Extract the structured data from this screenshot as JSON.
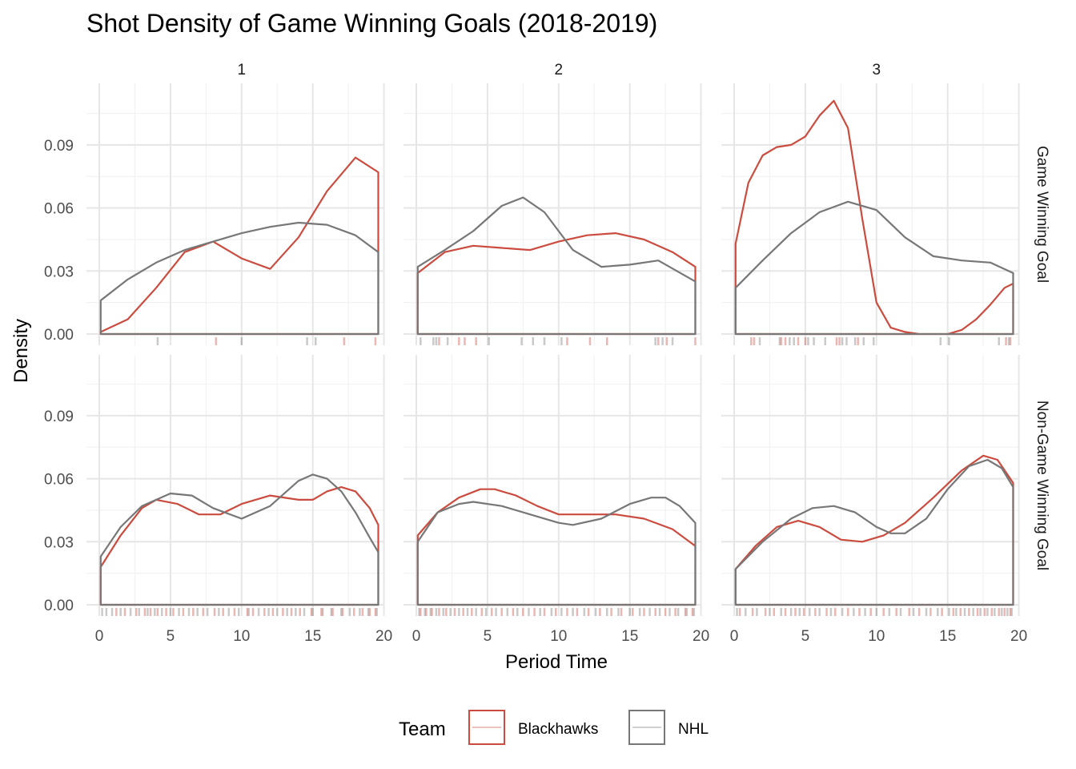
{
  "chart_data": {
    "type": "line",
    "title": "Shot Density of Game Winning Goals (2018-2019)",
    "xlabel": "Period Time",
    "ylabel": "Density",
    "xlim": [
      0,
      20
    ],
    "ylim": [
      0,
      0.12
    ],
    "x_ticks": [
      0,
      5,
      10,
      15,
      20
    ],
    "y_ticks": [
      0.0,
      0.03,
      0.06,
      0.09
    ],
    "y_tick_labels": [
      "0.00",
      "0.03",
      "0.06",
      "0.09"
    ],
    "grid": true,
    "col_facets": [
      "1",
      "2",
      "3"
    ],
    "row_facets": [
      "Game Winning Goal",
      "Non-Game Winning Goal"
    ],
    "legend": {
      "title": "Team",
      "position": "bottom",
      "entries": [
        "Blackhawks",
        "NHL"
      ]
    },
    "colors": {
      "Blackhawks": "#cb4c3f",
      "NHL": "#777777"
    },
    "panels": [
      {
        "row": "Game Winning Goal",
        "col": "1",
        "series": [
          {
            "name": "Blackhawks",
            "x": [
              0.1,
              2,
              4,
              6,
              8,
              10,
              12,
              14,
              16,
              18,
              19.6
            ],
            "y": [
              0.001,
              0.007,
              0.022,
              0.039,
              0.044,
              0.036,
              0.031,
              0.046,
              0.068,
              0.084,
              0.077
            ]
          },
          {
            "name": "NHL",
            "x": [
              0.1,
              2,
              4,
              6,
              8,
              10,
              12,
              14,
              16,
              18,
              19.6
            ],
            "y": [
              0.016,
              0.026,
              0.034,
              0.04,
              0.044,
              0.048,
              0.051,
              0.053,
              0.052,
              0.047,
              0.039
            ]
          }
        ],
        "rug": {
          "Blackhawks": [
            8.2,
            17.2,
            19.4
          ],
          "NHL": [
            4.1,
            10.0,
            14.6,
            15.2
          ]
        }
      },
      {
        "row": "Game Winning Goal",
        "col": "2",
        "series": [
          {
            "name": "Blackhawks",
            "x": [
              0.1,
              2,
              4,
              6,
              8,
              10,
              12,
              14,
              16,
              18,
              19.6
            ],
            "y": [
              0.029,
              0.039,
              0.042,
              0.041,
              0.04,
              0.044,
              0.047,
              0.048,
              0.045,
              0.039,
              0.032
            ]
          },
          {
            "name": "NHL",
            "x": [
              0.1,
              2,
              4,
              6,
              7.5,
              9,
              11,
              13,
              15,
              17,
              19.6
            ],
            "y": [
              0.032,
              0.04,
              0.049,
              0.061,
              0.065,
              0.058,
              0.04,
              0.032,
              0.033,
              0.035,
              0.025
            ]
          }
        ],
        "rug": {
          "Blackhawks": [
            1.6,
            3.0,
            3.4,
            4.2,
            10.6,
            12.2,
            13.4,
            17.0,
            17.6,
            19.6
          ],
          "NHL": [
            0.3,
            1.2,
            1.4,
            2.2,
            5.1,
            7.4,
            8.2,
            9.0,
            10.2,
            16.8,
            17.3,
            18.0
          ]
        }
      },
      {
        "row": "Game Winning Goal",
        "col": "3",
        "series": [
          {
            "name": "Blackhawks",
            "x": [
              0.1,
              1,
              2,
              3,
              4,
              5,
              6,
              7,
              8,
              9,
              10,
              11,
              12,
              13,
              14,
              15,
              16,
              17,
              18,
              19,
              19.6
            ],
            "y": [
              0.043,
              0.072,
              0.085,
              0.089,
              0.09,
              0.094,
              0.104,
              0.111,
              0.098,
              0.055,
              0.015,
              0.003,
              0.001,
              0.0,
              0.0,
              0.0,
              0.002,
              0.007,
              0.014,
              0.022,
              0.024
            ]
          },
          {
            "name": "NHL",
            "x": [
              0.1,
              2,
              4,
              6,
              8,
              10,
              12,
              14,
              16,
              18,
              19.6
            ],
            "y": [
              0.022,
              0.035,
              0.048,
              0.058,
              0.063,
              0.059,
              0.046,
              0.037,
              0.035,
              0.034,
              0.029
            ]
          }
        ],
        "rug": {
          "Blackhawks": [
            1.2,
            1.4,
            3.3,
            3.6,
            4.5,
            5.0,
            7.2,
            7.4,
            8.7,
            19.1,
            19.4
          ],
          "NHL": [
            1.8,
            3.2,
            3.9,
            4.2,
            5.2,
            5.6,
            6.4,
            7.6,
            7.9,
            8.5,
            9.1,
            9.8,
            14.5,
            15.1,
            18.6,
            19.3
          ]
        }
      },
      {
        "row": "Non-Game Winning Goal",
        "col": "1",
        "series": [
          {
            "name": "Blackhawks",
            "x": [
              0.1,
              1.5,
              3,
              4,
              5.5,
              7,
              8.5,
              10,
              12,
              14,
              15,
              16,
              17,
              18,
              19,
              19.6
            ],
            "y": [
              0.018,
              0.033,
              0.046,
              0.05,
              0.048,
              0.043,
              0.043,
              0.048,
              0.052,
              0.05,
              0.05,
              0.054,
              0.056,
              0.054,
              0.046,
              0.038
            ]
          },
          {
            "name": "NHL",
            "x": [
              0.1,
              1.5,
              3,
              5,
              6.5,
              8,
              10,
              12,
              14,
              15,
              16,
              17,
              18,
              19,
              19.6
            ],
            "y": [
              0.023,
              0.037,
              0.047,
              0.053,
              0.052,
              0.046,
              0.041,
              0.047,
              0.059,
              0.062,
              0.06,
              0.054,
              0.044,
              0.032,
              0.025
            ]
          }
        ],
        "rug": {
          "Blackhawks": [
            1.2,
            1.8,
            2.6,
            3.2,
            3.6,
            4.1,
            4.7,
            5.2,
            5.9,
            6.6,
            7.3,
            8.1,
            8.7,
            9.5,
            10.4,
            10.8,
            11.6,
            12.2,
            12.9,
            13.5,
            14.1,
            14.9,
            15.6,
            16.4,
            17.1,
            17.9,
            18.5,
            19.0,
            19.4
          ],
          "NHL": [
            0.2,
            0.5,
            0.9,
            1.5,
            2.2,
            2.8,
            3.4,
            3.9,
            4.4,
            5.0,
            5.6,
            6.3,
            6.9,
            7.6,
            8.4,
            9.1,
            9.8,
            10.5,
            11.2,
            11.9,
            12.5,
            13.2,
            13.8,
            14.4,
            15.0,
            15.7,
            16.3,
            17.0,
            17.6,
            18.3,
            18.9,
            19.5
          ]
        }
      },
      {
        "row": "Non-Game Winning Goal",
        "col": "2",
        "series": [
          {
            "name": "Blackhawks",
            "x": [
              0.1,
              1.5,
              3,
              4.5,
              5.5,
              7,
              8.5,
              10,
              12,
              14,
              16,
              18,
              19.6
            ],
            "y": [
              0.033,
              0.044,
              0.051,
              0.055,
              0.055,
              0.052,
              0.047,
              0.043,
              0.043,
              0.043,
              0.041,
              0.036,
              0.028
            ]
          },
          {
            "name": "NHL",
            "x": [
              0.1,
              1.5,
              3,
              4,
              6,
              8,
              10,
              11,
              13,
              15,
              16.5,
              17.5,
              18.5,
              19.6
            ],
            "y": [
              0.03,
              0.044,
              0.048,
              0.049,
              0.047,
              0.043,
              0.039,
              0.038,
              0.041,
              0.048,
              0.051,
              0.051,
              0.047,
              0.039
            ]
          }
        ],
        "rug": {
          "Blackhawks": [
            0.3,
            0.7,
            1.1,
            1.6,
            2.1,
            2.7,
            3.3,
            3.9,
            4.6,
            5.3,
            6.0,
            6.8,
            7.5,
            8.3,
            9.0,
            9.8,
            10.6,
            11.3,
            12.1,
            12.9,
            13.7,
            14.4,
            15.2,
            16.0,
            16.8,
            17.5,
            18.2,
            18.9,
            19.4
          ],
          "NHL": [
            0.2,
            0.6,
            1.0,
            1.4,
            1.9,
            2.4,
            3.0,
            3.6,
            4.2,
            4.9,
            5.6,
            6.4,
            7.1,
            7.9,
            8.7,
            9.5,
            10.2,
            11.0,
            11.8,
            12.6,
            13.4,
            14.2,
            15.0,
            15.7,
            16.4,
            17.1,
            17.8,
            18.4,
            19.0,
            19.5
          ]
        }
      },
      {
        "row": "Non-Game Winning Goal",
        "col": "3",
        "series": [
          {
            "name": "Blackhawks",
            "x": [
              0.1,
              1.5,
              3,
              4.5,
              6,
              7.5,
              9,
              10.5,
              12,
              14,
              16,
              17.5,
              18.5,
              19.6
            ],
            "y": [
              0.017,
              0.028,
              0.037,
              0.04,
              0.037,
              0.031,
              0.03,
              0.033,
              0.039,
              0.051,
              0.064,
              0.071,
              0.069,
              0.058
            ]
          },
          {
            "name": "NHL",
            "x": [
              0.1,
              2,
              4,
              5.5,
              7,
              8.5,
              10,
              11,
              12,
              13.5,
              15,
              16.5,
              17.8,
              18.8,
              19.6
            ],
            "y": [
              0.017,
              0.03,
              0.041,
              0.046,
              0.047,
              0.044,
              0.037,
              0.034,
              0.034,
              0.041,
              0.055,
              0.066,
              0.069,
              0.065,
              0.056
            ]
          }
        ],
        "rug": {
          "Blackhawks": [
            0.4,
            1.3,
            2.2,
            2.8,
            3.6,
            4.3,
            4.9,
            5.7,
            6.5,
            7.1,
            8.0,
            8.8,
            9.6,
            10.5,
            11.4,
            12.3,
            13.0,
            13.8,
            14.6,
            15.4,
            15.9,
            16.5,
            17.1,
            17.6,
            18.1,
            18.6,
            19.0,
            19.4
          ],
          "NHL": [
            0.2,
            0.8,
            1.6,
            2.5,
            3.3,
            4.0,
            4.6,
            5.3,
            6.0,
            6.8,
            7.6,
            8.4,
            9.2,
            10.0,
            10.9,
            11.7,
            12.6,
            13.5,
            14.3,
            15.1,
            15.6,
            16.2,
            16.8,
            17.3,
            17.8,
            18.3,
            18.8,
            19.2,
            19.5
          ]
        }
      }
    ]
  }
}
